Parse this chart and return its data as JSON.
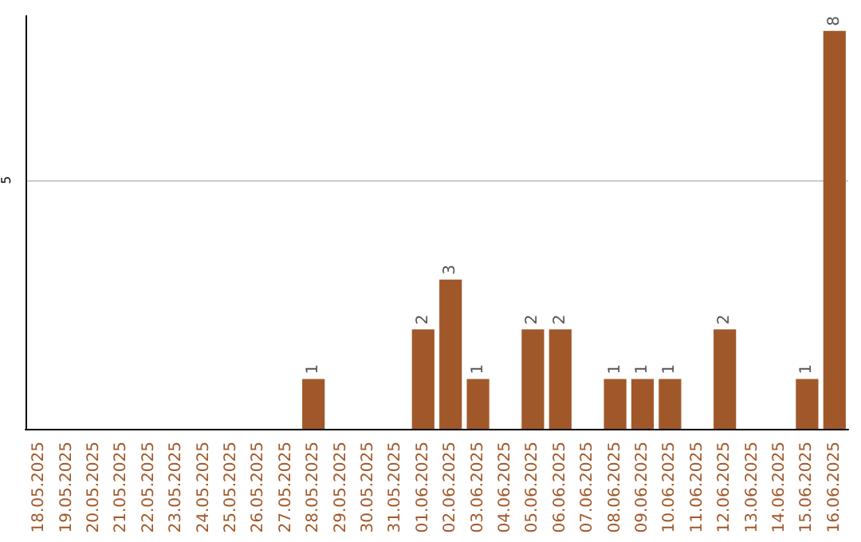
{
  "chart_data": {
    "type": "bar",
    "categories": [
      "18.05.2025",
      "19.05.2025",
      "20.05.2025",
      "21.05.2025",
      "22.05.2025",
      "23.05.2025",
      "24.05.2025",
      "25.05.2025",
      "26.05.2025",
      "27.05.2025",
      "28.05.2025",
      "29.05.2025",
      "30.05.2025",
      "31.05.2025",
      "01.06.2025",
      "02.06.2025",
      "03.06.2025",
      "04.06.2025",
      "05.06.2025",
      "06.06.2025",
      "07.06.2025",
      "08.06.2025",
      "09.06.2025",
      "10.06.2025",
      "11.06.2025",
      "12.06.2025",
      "13.06.2025",
      "14.06.2025",
      "15.06.2025",
      "16.06.2025"
    ],
    "values": [
      0,
      0,
      0,
      0,
      0,
      0,
      0,
      0,
      0,
      0,
      1,
      0,
      0,
      0,
      2,
      3,
      1,
      0,
      2,
      2,
      0,
      1,
      1,
      1,
      0,
      2,
      0,
      0,
      1,
      8
    ],
    "value_labels": [
      null,
      null,
      null,
      null,
      null,
      null,
      null,
      null,
      null,
      null,
      "1",
      null,
      null,
      null,
      "2",
      "3",
      "1",
      null,
      "2",
      "2",
      null,
      "1",
      "1",
      "1",
      null,
      "2",
      null,
      null,
      "1",
      "8"
    ],
    "color": "#a0582a",
    "ylim": [
      0,
      8.3
    ],
    "yticks": [
      5
    ],
    "grid": "y"
  }
}
